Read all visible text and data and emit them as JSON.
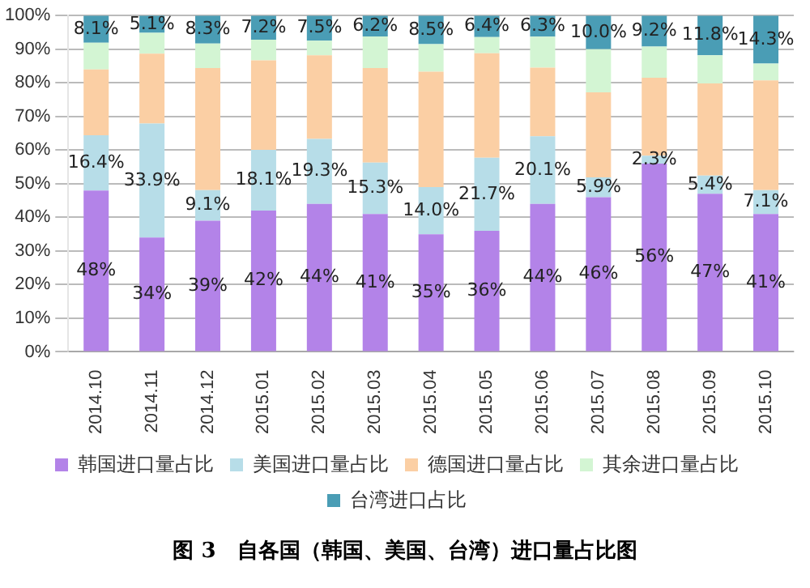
{
  "chart_data": {
    "type": "bar",
    "stacked": true,
    "title": "图 3　自各国（韩国、美国、台湾）进口量占比图",
    "categories": [
      "2014.10",
      "2014.11",
      "2014.12",
      "2015.01",
      "2015.02",
      "2015.03",
      "2015.04",
      "2015.05",
      "2015.06",
      "2015.07",
      "2015.08",
      "2015.09",
      "2015.10"
    ],
    "series": [
      {
        "name": "韩国进口量占比",
        "color": "#b383e8",
        "values": [
          48,
          34,
          39,
          42,
          44,
          41,
          35,
          36,
          44,
          46,
          56,
          47,
          41
        ],
        "value_labels": [
          "48%",
          "34%",
          "39%",
          "42%",
          "44%",
          "41%",
          "35%",
          "36%",
          "44%",
          "46%",
          "56%",
          "47%",
          "41%"
        ]
      },
      {
        "name": "美国进口量占比",
        "color": "#b7dde8",
        "values": [
          16.4,
          33.9,
          9.1,
          18.1,
          19.3,
          15.3,
          14.0,
          21.7,
          20.1,
          5.9,
          2.3,
          5.4,
          7.1
        ],
        "value_labels": [
          "16.4%",
          "33.9%",
          "9.1%",
          "18.1%",
          "19.3%",
          "15.3%",
          "14.0%",
          "21.7%",
          "20.1%",
          "5.9%",
          "2.3%",
          "5.4%",
          "7.1%"
        ]
      },
      {
        "name": "德国进口量占比",
        "color": "#fbcfa4",
        "values": [
          19.6,
          20.8,
          36.3,
          26.6,
          24.9,
          28.1,
          34.3,
          31.1,
          20.4,
          25.3,
          23.2,
          27.4,
          32.6
        ]
      },
      {
        "name": "其余进口量占比",
        "color": "#d3f5d3",
        "values": [
          7.9,
          6.2,
          7.3,
          6.1,
          4.3,
          9.4,
          8.2,
          4.8,
          9.2,
          12.8,
          9.3,
          8.4,
          5.0
        ]
      },
      {
        "name": "台湾进口占比",
        "color": "#4a9db5",
        "values": [
          8.1,
          5.1,
          8.3,
          7.2,
          7.5,
          6.2,
          8.5,
          6.4,
          6.3,
          10.0,
          9.2,
          11.8,
          14.3
        ],
        "value_labels": [
          "8.1%",
          "5.1%",
          "8.3%",
          "7.2%",
          "7.5%",
          "6.2%",
          "8.5%",
          "6.4%",
          "6.3%",
          "10.0%",
          "9.2%",
          "11.8%",
          "14.3%"
        ]
      }
    ],
    "ylim": [
      0,
      100
    ],
    "yticks": [
      {
        "value": 0,
        "label": "0%"
      },
      {
        "value": 10,
        "label": "10%"
      },
      {
        "value": 20,
        "label": "20%"
      },
      {
        "value": 30,
        "label": "30%"
      },
      {
        "value": 40,
        "label": "40%"
      },
      {
        "value": 50,
        "label": "50%"
      },
      {
        "value": 60,
        "label": "60%"
      },
      {
        "value": 70,
        "label": "70%"
      },
      {
        "value": 80,
        "label": "80%"
      },
      {
        "value": 90,
        "label": "90%"
      },
      {
        "value": 100,
        "label": "100%"
      }
    ],
    "grid": "y",
    "legend": "bottom"
  }
}
